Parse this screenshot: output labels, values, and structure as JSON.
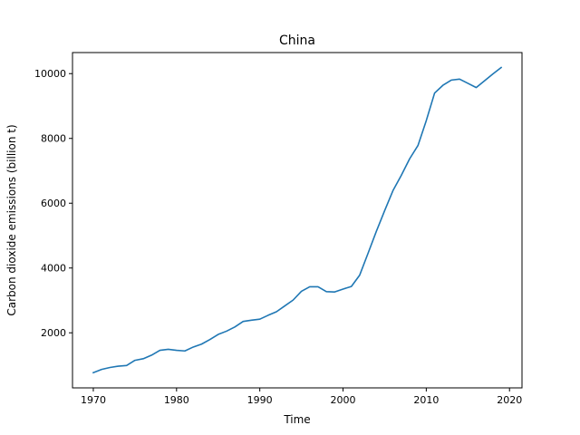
{
  "chart_data": {
    "type": "line",
    "title": "China",
    "xlabel": "Time",
    "ylabel": "Carbon dioxide emissions (billion t)",
    "xlim": [
      1967.5,
      2021.5
    ],
    "ylim": [
      300,
      10650
    ],
    "x_ticks": [
      1970,
      1980,
      1990,
      2000,
      2010,
      2020
    ],
    "y_ticks": [
      2000,
      4000,
      6000,
      8000,
      10000
    ],
    "grid": false,
    "legend": "none",
    "series": [
      {
        "color": "#1f77b4",
        "x": [
          1970,
          1971,
          1972,
          1973,
          1974,
          1975,
          1976,
          1977,
          1978,
          1979,
          1980,
          1981,
          1982,
          1983,
          1984,
          1985,
          1986,
          1987,
          1988,
          1989,
          1990,
          1991,
          1992,
          1993,
          1994,
          1995,
          1996,
          1997,
          1998,
          1999,
          2000,
          2001,
          2002,
          2003,
          2004,
          2005,
          2006,
          2007,
          2008,
          2009,
          2010,
          2011,
          2012,
          2013,
          2014,
          2015,
          2016,
          2017,
          2018,
          2019
        ],
        "values": [
          770,
          870,
          930,
          970,
          990,
          1150,
          1200,
          1310,
          1460,
          1490,
          1460,
          1440,
          1560,
          1650,
          1790,
          1950,
          2050,
          2180,
          2350,
          2390,
          2420,
          2540,
          2650,
          2830,
          3010,
          3280,
          3420,
          3420,
          3270,
          3260,
          3350,
          3430,
          3780,
          4450,
          5130,
          5770,
          6390,
          6860,
          7370,
          7780,
          8550,
          9400,
          9640,
          9800,
          9830,
          9700,
          9570,
          9780,
          9990,
          10190
        ]
      }
    ]
  }
}
